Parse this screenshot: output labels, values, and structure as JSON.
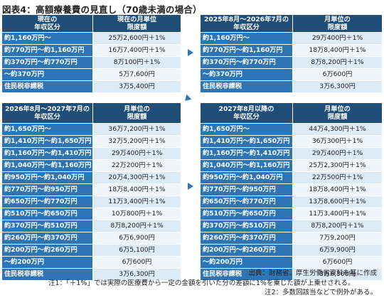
{
  "title": "図表4：高額療養費の見直し（70歳未満の場合）",
  "table_current": {
    "headers": [
      "現在の\n年収区分",
      "現在の月単位\n限度額"
    ],
    "rows": [
      [
        "約1,160万円～",
        "25万2,600円＋1%"
      ],
      [
        "約770万円～約1,160万円",
        "16万7,400円＋1%"
      ],
      [
        "約370万円～約770万円",
        "8万100円＋1%"
      ],
      [
        "～約370万円",
        "5万7,600円"
      ],
      [
        "住民税非課税",
        "3万5,400円"
      ]
    ]
  },
  "table_2025": {
    "headers": [
      "2025年8月～2026年7月の\n年収区分",
      "月単位の\n限度額"
    ],
    "rows": [
      [
        "約1,160万円～",
        "29万400円＋1%"
      ],
      [
        "約770万円～約1,160万円",
        "18万8,400円＋1%"
      ],
      [
        "約370万円～約770万円",
        "8万8,200円＋1%"
      ],
      [
        "～約370万円",
        "6万600円"
      ],
      [
        "住民税非課税",
        "3万6,300円"
      ]
    ]
  },
  "table_2026": {
    "headers": [
      "2026年8月～2027年7月の\n年収区分",
      "月単位の\n限度額"
    ],
    "rows": [
      [
        "約1,650万円～",
        "36万7,200円＋1%"
      ],
      [
        "約1,410万円～約1,650万円",
        "32万5,200円＋1%"
      ],
      [
        "約1,160万円～約1,410万円",
        "29万400円＋1%"
      ],
      [
        "約1,040万円～約1,160万円",
        "22万200円＋1%"
      ],
      [
        "約950万円～約1,040万円",
        "20万4,300円＋1%"
      ],
      [
        "約770万円～約950万円",
        "18万8,400円＋1%"
      ],
      [
        "約650万円～約770万円",
        "11万3,400円＋1%"
      ],
      [
        "約510万円～約650万円",
        "10万800円＋1%"
      ],
      [
        "約370万円～約510万円",
        "8万8,200円＋1%"
      ],
      [
        "約260万円～約370万円",
        "6万6,900円"
      ],
      [
        "約200万円～約260万円",
        "6万5,100円"
      ],
      [
        "～約200万円",
        "6万600円"
      ],
      [
        "住民税非課税",
        "3万6,300円"
      ]
    ]
  },
  "table_2027": {
    "headers": [
      "2027年8月以降の\n年収区分",
      "月単位の\n限度額"
    ],
    "rows": [
      [
        "約1,650万円～",
        "44万4,300円＋1%"
      ],
      [
        "約1,410万円～約1,650万円",
        "36万300円＋1%"
      ],
      [
        "約1,160万円～約1,410万円",
        "29万400円＋1%"
      ],
      [
        "約1,040万円～約1,160万円",
        "25万2,300円＋1%"
      ],
      [
        "約950万円～約1,040万円",
        "22万500円＋1%"
      ],
      [
        "約770万円～約950万円",
        "18万8,400円＋1%"
      ],
      [
        "約650万円～約770万円",
        "13万8,600円＋1%"
      ],
      [
        "約510万円～約650万円",
        "11万3,400円＋1%"
      ],
      [
        "約370万円～約510万円",
        "8万8,200円＋1%"
      ],
      [
        "約260万円～約370万円",
        "7万9,200円"
      ],
      [
        "約200万円～約260万円",
        "6万9,900円"
      ],
      [
        "～約200万円",
        "6万600円"
      ],
      [
        "住民税非課税",
        "3万6,300円"
      ]
    ]
  },
  "notes": {
    "source": "出典：財務省、厚生労働省資料を基に作成",
    "note1": "注1：「＋1%」では実際の医療費から一定の金額を引いた分の差額に1%を乗じた額が上乗せされる。",
    "note2": "注2：多数回該当などで例外がある。"
  },
  "colors": {
    "header": "#1f4e79",
    "category": "#2e75b6",
    "value_cell": "#ddebf7",
    "arrow": "#2e75b6"
  }
}
